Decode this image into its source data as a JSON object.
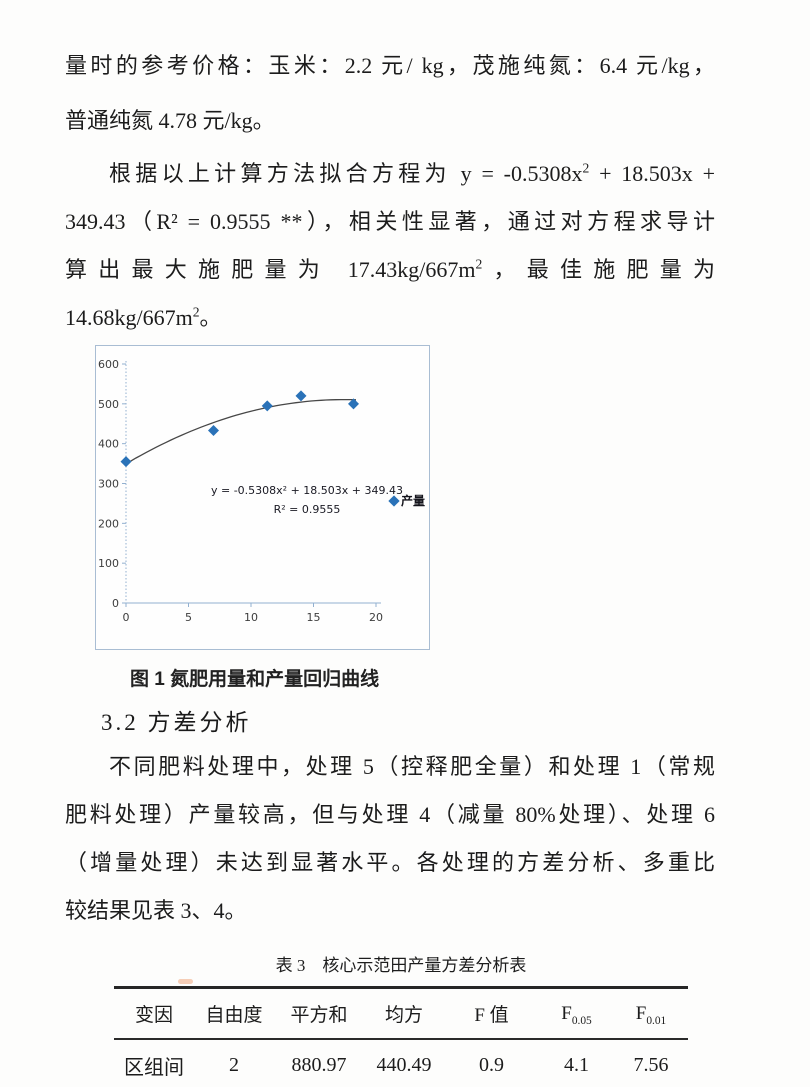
{
  "doc": {
    "p1": {
      "l1": "量时的参考价格：玉米：2.2 元/ kg，茂施纯氮：6.4 元/kg，",
      "l2": "普通纯氮 4.78 元/kg。"
    },
    "p2": {
      "l1_pre": "根据以上计算方法拟合方程为 y = -0.5308x",
      "l1_sup": "2",
      "l1_post": " + 18.503x +",
      "l2": "349.43（R² = 0.9555 **），相关性显著，通过对方程求导计",
      "l3_pre": "算出最大施肥量为 17.43kg/667m",
      "l3_sup": "2",
      "l3_post": "，最佳施肥量为",
      "l4_pre": "14.68kg/667m",
      "l4_sup": "2",
      "l4_post": "。"
    },
    "figure_caption": "图 1 氮肥用量和产量回归曲线",
    "section_heading": "3.2 方差分析",
    "p3": {
      "l1": "不同肥料处理中，处理 5（控释肥全量）和处理 1（常规",
      "l2": "肥料处理）产量较高，但与处理 4（减量 80%处理）、处理 6",
      "l3": "（增量处理）未达到显著水平。各处理的方差分析、多重比",
      "l4": "较结果见表 3、4。"
    },
    "table": {
      "title": "表 3　核心示范田产量方差分析表",
      "headers": [
        {
          "text": "变因",
          "sub": ""
        },
        {
          "text": "自由度",
          "sub": ""
        },
        {
          "text": "平方和",
          "sub": ""
        },
        {
          "text": "均方",
          "sub": ""
        },
        {
          "text": "F 值",
          "sub": ""
        },
        {
          "text": "F",
          "sub": "0.05"
        },
        {
          "text": "F",
          "sub": "0.01"
        }
      ],
      "rows": [
        [
          "区组间",
          "2",
          "880.97",
          "440.49",
          "0.9",
          "4.1",
          "7.56"
        ]
      ]
    }
  },
  "chart_data": {
    "type": "scatter",
    "series": [
      {
        "name": "产量",
        "points": [
          [
            0,
            355
          ],
          [
            7,
            433
          ],
          [
            11.3,
            495
          ],
          [
            14,
            520
          ],
          [
            18.2,
            500
          ]
        ]
      }
    ],
    "trendline": {
      "type": "quadratic",
      "a": -0.5308,
      "b": 18.503,
      "c": 349.43,
      "x_min": 0,
      "x_max": 18.4
    },
    "annotation": [
      "y = -0.5308x² + 18.503x + 349.43",
      "R² = 0.9555"
    ],
    "x_ticks": [
      0,
      5,
      10,
      15,
      20
    ],
    "y_ticks": [
      0,
      100,
      200,
      300,
      400,
      500,
      600
    ],
    "xlim": [
      0,
      20
    ],
    "ylim": [
      0,
      600
    ],
    "grid": false,
    "legend_position": "right-middle",
    "point_color": "#2a72b8",
    "axis_color": "#92b0d0",
    "curve_color": "#474747"
  }
}
